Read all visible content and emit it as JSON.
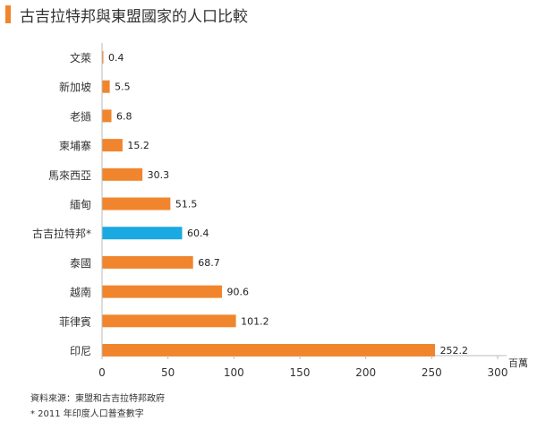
{
  "title": "古吉拉特邦與東盟國家的人口比較",
  "source": "資料來源：東盟和古吉拉特邦政府",
  "note": "* 2011 年印度人口普查數字",
  "colors": {
    "accent": "#f0852d",
    "bar": "#f0852d",
    "highlight": "#1ba9e1"
  },
  "chart_data": {
    "type": "bar",
    "orientation": "horizontal",
    "categories": [
      "文萊",
      "新加坡",
      "老撾",
      "柬埔寨",
      "馬來西亞",
      "緬甸",
      "古吉拉特邦*",
      "泰國",
      "越南",
      "菲律賓",
      "印尼"
    ],
    "values": [
      0.4,
      5.5,
      6.8,
      15.2,
      30.3,
      51.5,
      60.4,
      68.7,
      90.6,
      101.2,
      252.2
    ],
    "value_labels": [
      "0.4",
      "5.5",
      "6.8",
      "15.2",
      "30.3",
      "51.5",
      "60.4",
      "68.7",
      "90.6",
      "101.2",
      "252.2"
    ],
    "highlight_index": 6,
    "xlim": [
      0,
      300
    ],
    "xticks": [
      0,
      50,
      100,
      150,
      200,
      250,
      300
    ],
    "xunit": "百萬",
    "grid": false
  }
}
